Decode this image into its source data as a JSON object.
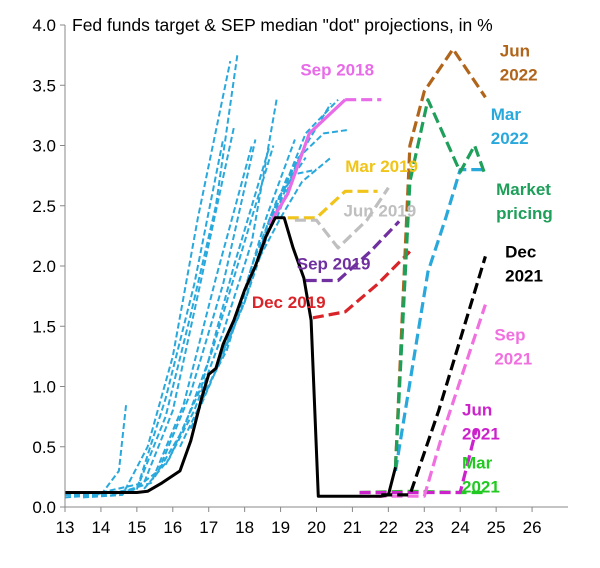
{
  "chart_data": {
    "type": "line",
    "title": "Fed funds target & SEP median \"dot\" projections, in %",
    "xlim": [
      13,
      27
    ],
    "ylim": [
      0,
      4
    ],
    "x_ticks": [
      "13",
      "14",
      "15",
      "16",
      "17",
      "18",
      "19",
      "20",
      "21",
      "22",
      "23",
      "24",
      "25",
      "26"
    ],
    "y_ticks": [
      "0.0",
      "0.5",
      "1.0",
      "1.5",
      "2.0",
      "2.5",
      "3.0",
      "3.5",
      "4.0"
    ],
    "grid": false,
    "colors": {
      "actual": "#000000",
      "history_dots": "#29a8dc",
      "sep2018": "#e86be8",
      "mar2019": "#f0c419",
      "jun2019": "#bfbfbf",
      "sep2019": "#7030a0",
      "dec2019": "#d9252a",
      "mar2021": "#22c922",
      "jun2021": "#cc22cc",
      "sep2021": "#f070e0",
      "dec2021": "#000000",
      "mar2022": "#29a8dc",
      "jun2022": "#b0651b",
      "market": "#1e9f5a"
    },
    "series": [
      {
        "key": "actual",
        "style": "solid",
        "points": [
          [
            13,
            0.12
          ],
          [
            14,
            0.12
          ],
          [
            15,
            0.12
          ],
          [
            15.3,
            0.13
          ],
          [
            15.7,
            0.2
          ],
          [
            16.2,
            0.3
          ],
          [
            16.5,
            0.55
          ],
          [
            16.8,
            0.9
          ],
          [
            17,
            1.1
          ],
          [
            17.2,
            1.15
          ],
          [
            17.4,
            1.35
          ],
          [
            17.7,
            1.55
          ],
          [
            18,
            1.8
          ],
          [
            18.3,
            2.0
          ],
          [
            18.6,
            2.25
          ],
          [
            18.85,
            2.4
          ],
          [
            19.1,
            2.4
          ],
          [
            19.35,
            2.15
          ],
          [
            19.65,
            1.9
          ],
          [
            19.85,
            1.55
          ],
          [
            20.05,
            0.09
          ],
          [
            21,
            0.09
          ],
          [
            21.5,
            0.09
          ],
          [
            21.8,
            0.09
          ],
          [
            22,
            0.1
          ],
          [
            22.2,
            0.33
          ]
        ]
      },
      {
        "key": "history_dots",
        "style": "dashed",
        "points": [
          [
            13,
            0.1
          ],
          [
            14,
            0.1
          ],
          [
            14.5,
            0.3
          ],
          [
            14.7,
            0.85
          ]
        ]
      },
      {
        "key": "history_dots",
        "style": "dashed",
        "points": [
          [
            13,
            0.08
          ],
          [
            14,
            0.1
          ],
          [
            15,
            0.15
          ],
          [
            15.8,
            0.75
          ],
          [
            16.5,
            1.6
          ],
          [
            17.2,
            2.5
          ],
          [
            17.8,
            3.76
          ]
        ]
      },
      {
        "key": "history_dots",
        "style": "dashed",
        "points": [
          [
            13.5,
            0.08
          ],
          [
            14.6,
            0.1
          ],
          [
            15.3,
            0.5
          ],
          [
            16,
            1.25
          ],
          [
            16.7,
            2.4
          ],
          [
            17.6,
            3.7
          ]
        ]
      },
      {
        "key": "history_dots",
        "style": "dashed",
        "points": [
          [
            13.8,
            0.1
          ],
          [
            15,
            0.15
          ],
          [
            15.8,
            0.9
          ],
          [
            16.6,
            1.85
          ],
          [
            17.4,
            3.05
          ]
        ]
      },
      {
        "key": "history_dots",
        "style": "dashed",
        "points": [
          [
            14,
            0.12
          ],
          [
            15.2,
            0.2
          ],
          [
            16,
            0.8
          ],
          [
            16.8,
            1.9
          ],
          [
            17.7,
            3.15
          ]
        ]
      },
      {
        "key": "history_dots",
        "style": "dashed",
        "points": [
          [
            14.3,
            0.1
          ],
          [
            15.4,
            0.2
          ],
          [
            16.3,
            0.85
          ],
          [
            17.2,
            1.9
          ],
          [
            18.2,
            3.0
          ]
        ]
      },
      {
        "key": "history_dots",
        "style": "dashed",
        "points": [
          [
            14.8,
            0.12
          ],
          [
            15.6,
            0.3
          ],
          [
            16.5,
            0.95
          ],
          [
            17.4,
            1.85
          ],
          [
            18.3,
            3.05
          ]
        ]
      },
      {
        "key": "history_dots",
        "style": "dashed",
        "points": [
          [
            15.2,
            0.15
          ],
          [
            15.9,
            0.4
          ],
          [
            16.8,
            1.0
          ],
          [
            17.7,
            2.0
          ],
          [
            18.7,
            3.0
          ]
        ]
      },
      {
        "key": "history_dots",
        "style": "dashed",
        "points": [
          [
            15.5,
            0.25
          ],
          [
            16.3,
            0.65
          ],
          [
            17.1,
            1.3
          ],
          [
            17.9,
            2.1
          ],
          [
            18.8,
            3.0
          ]
        ]
      },
      {
        "key": "history_dots",
        "style": "dashed",
        "points": [
          [
            15.8,
            0.35
          ],
          [
            16.6,
            0.8
          ],
          [
            17.4,
            1.45
          ],
          [
            18.2,
            2.2
          ],
          [
            18.9,
            3.4
          ]
        ]
      },
      {
        "key": "history_dots",
        "style": "dashed",
        "points": [
          [
            16.2,
            0.5
          ],
          [
            17,
            1.0
          ],
          [
            17.8,
            1.6
          ],
          [
            18.6,
            2.4
          ],
          [
            19.4,
            3.05
          ]
        ]
      },
      {
        "key": "history_dots",
        "style": "dashed",
        "points": [
          [
            16.5,
            0.65
          ],
          [
            17.3,
            1.2
          ],
          [
            18,
            1.7
          ],
          [
            18.8,
            2.4
          ],
          [
            19.6,
            2.95
          ]
        ]
      },
      {
        "key": "history_dots",
        "style": "dashed",
        "points": [
          [
            16.8,
            0.9
          ],
          [
            17.5,
            1.3
          ],
          [
            18.2,
            2.0
          ],
          [
            18.9,
            2.55
          ],
          [
            19.7,
            2.9
          ]
        ]
      },
      {
        "key": "history_dots",
        "style": "dashed",
        "points": [
          [
            17.2,
            1.15
          ],
          [
            18,
            1.7
          ],
          [
            18.6,
            2.3
          ],
          [
            19.2,
            2.75
          ],
          [
            20,
            2.8
          ]
        ]
      },
      {
        "key": "history_dots",
        "style": "dashed",
        "points": [
          [
            17.5,
            1.3
          ],
          [
            18.2,
            1.95
          ],
          [
            19,
            2.4
          ],
          [
            19.6,
            2.7
          ],
          [
            20.4,
            2.9
          ]
        ]
      },
      {
        "key": "history_dots",
        "style": "dashed",
        "points": [
          [
            18,
            1.7
          ],
          [
            18.7,
            2.4
          ],
          [
            19.5,
            2.9
          ],
          [
            20.2,
            3.1
          ],
          [
            20.9,
            3.13
          ]
        ]
      },
      {
        "key": "history_dots",
        "style": "dashed",
        "points": [
          [
            18.5,
            2.2
          ],
          [
            19.1,
            2.65
          ],
          [
            19.7,
            3.1
          ],
          [
            20.6,
            3.38
          ]
        ]
      },
      {
        "key": "history_dots",
        "style": "dashed",
        "points": [
          [
            18.9,
            2.4
          ],
          [
            19.6,
            2.95
          ],
          [
            20.4,
            3.35
          ]
        ]
      },
      {
        "key": "sep2018",
        "style": "solid",
        "points": [
          [
            18.7,
            2.35
          ],
          [
            19.2,
            2.6
          ],
          [
            19.8,
            3.1
          ],
          [
            20.8,
            3.38
          ]
        ]
      },
      {
        "key": "sep2018",
        "style": "dashed",
        "points": [
          [
            20.8,
            3.38
          ],
          [
            21.8,
            3.38
          ]
        ]
      },
      {
        "key": "mar2019",
        "style": "dashed",
        "points": [
          [
            19.2,
            2.4
          ],
          [
            20,
            2.4
          ],
          [
            20.8,
            2.62
          ],
          [
            21.7,
            2.62
          ]
        ]
      },
      {
        "key": "jun2019",
        "style": "dashed",
        "points": [
          [
            19.4,
            2.38
          ],
          [
            20,
            2.38
          ],
          [
            20.6,
            2.15
          ],
          [
            21.4,
            2.38
          ],
          [
            22,
            2.65
          ]
        ]
      },
      {
        "key": "sep2019",
        "style": "dashed",
        "points": [
          [
            19.7,
            1.88
          ],
          [
            20.6,
            1.88
          ],
          [
            21.5,
            2.12
          ],
          [
            22.3,
            2.37
          ]
        ]
      },
      {
        "key": "dec2019",
        "style": "dashed",
        "points": [
          [
            19.9,
            1.57
          ],
          [
            20.8,
            1.62
          ],
          [
            21.7,
            1.85
          ],
          [
            22.6,
            2.12
          ]
        ]
      },
      {
        "key": "mar2021",
        "style": "dashed",
        "points": [
          [
            21.2,
            0.12
          ],
          [
            22.6,
            0.13
          ],
          [
            24,
            0.12
          ],
          [
            24.7,
            0.12
          ]
        ]
      },
      {
        "key": "jun2021",
        "style": "dashed",
        "points": [
          [
            21.2,
            0.12
          ],
          [
            23.3,
            0.12
          ],
          [
            24,
            0.12
          ],
          [
            24.45,
            0.65
          ]
        ]
      },
      {
        "key": "sep2021",
        "style": "dashed",
        "points": [
          [
            21.2,
            0.09
          ],
          [
            23,
            0.09
          ],
          [
            23.5,
            0.6
          ],
          [
            24.7,
            1.68
          ]
        ]
      },
      {
        "key": "dec2021",
        "style": "dashed",
        "points": [
          [
            21.8,
            0.1
          ],
          [
            22.6,
            0.1
          ],
          [
            23.4,
            0.8
          ],
          [
            24.7,
            2.08
          ]
        ]
      },
      {
        "key": "mar2022",
        "style": "dashed",
        "points": [
          [
            22.2,
            0.3
          ],
          [
            23.1,
            1.95
          ],
          [
            23.6,
            2.4
          ],
          [
            24,
            2.8
          ],
          [
            24.7,
            2.8
          ]
        ]
      },
      {
        "key": "jun2022",
        "style": "dashed",
        "points": [
          [
            22.2,
            0.33
          ],
          [
            22.6,
            3.0
          ],
          [
            23,
            3.45
          ],
          [
            23.8,
            3.8
          ],
          [
            24.7,
            3.4
          ]
        ]
      },
      {
        "key": "market",
        "style": "dashed",
        "points": [
          [
            22.2,
            0.33
          ],
          [
            22.6,
            2.7
          ],
          [
            23.1,
            3.38
          ],
          [
            24,
            2.78
          ],
          [
            24.4,
            3.0
          ],
          [
            24.7,
            2.75
          ]
        ]
      }
    ],
    "annotations": [
      {
        "key": "sep2018",
        "lines": [
          "Sep 2018"
        ],
        "x": 19.55,
        "y": 3.58,
        "anchor": "start"
      },
      {
        "key": "mar2019",
        "lines": [
          "Mar 2019"
        ],
        "x": 20.8,
        "y": 2.78,
        "anchor": "start"
      },
      {
        "key": "jun2019",
        "lines": [
          "Jun 2019"
        ],
        "x": 20.75,
        "y": 2.41,
        "anchor": "start"
      },
      {
        "key": "sep2019",
        "lines": [
          "Sep 2019"
        ],
        "x": 19.45,
        "y": 1.97,
        "anchor": "start"
      },
      {
        "key": "dec2019",
        "lines": [
          "Dec 2019"
        ],
        "x": 18.2,
        "y": 1.65,
        "anchor": "start"
      },
      {
        "key": "jun2022",
        "lines": [
          "Jun",
          "2022"
        ],
        "x": 25.1,
        "y": 3.74,
        "anchor": "start"
      },
      {
        "key": "mar2022",
        "lines": [
          "Mar",
          "2022"
        ],
        "x": 24.85,
        "y": 3.21,
        "anchor": "start"
      },
      {
        "key": "market",
        "lines": [
          "Market",
          "pricing"
        ],
        "x": 25.0,
        "y": 2.59,
        "anchor": "start"
      },
      {
        "key": "dec2021",
        "lines": [
          "Dec",
          "2021"
        ],
        "x": 25.25,
        "y": 2.07,
        "anchor": "start"
      },
      {
        "key": "sep2021",
        "lines": [
          "Sep",
          "2021"
        ],
        "x": 24.95,
        "y": 1.38,
        "anchor": "start"
      },
      {
        "key": "jun2021",
        "lines": [
          "Jun",
          "2021"
        ],
        "x": 24.05,
        "y": 0.76,
        "anchor": "start"
      },
      {
        "key": "mar2021",
        "lines": [
          "Mar",
          "2021"
        ],
        "x": 24.05,
        "y": 0.32,
        "anchor": "start"
      }
    ]
  }
}
